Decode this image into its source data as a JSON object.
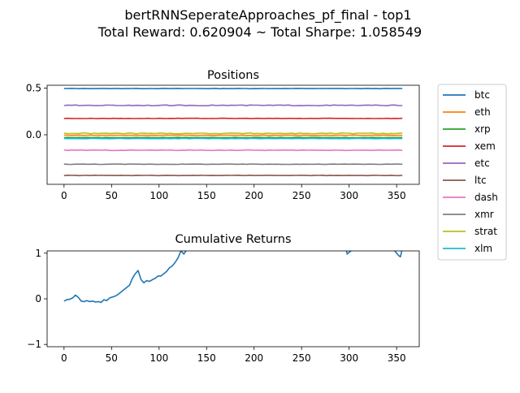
{
  "figure": {
    "title_line1": "bertRNNSeperateApproaches_pf_final - top1",
    "title_line2": "Total Reward: 0.620904 ~ Total Sharpe: 1.058549"
  },
  "chart_data": [
    {
      "type": "line",
      "title": "Positions",
      "xlim": [
        -17.8,
        373.8
      ],
      "ylim": [
        -0.53,
        0.53
      ],
      "xticks": [
        0,
        50,
        100,
        150,
        200,
        250,
        300,
        350
      ],
      "yticks": [
        0.5,
        0.0
      ],
      "ytick_labels": [
        "0.5",
        "0.0"
      ],
      "x_range": [
        0,
        356
      ],
      "series": [
        {
          "name": "btc",
          "color": "#1f77b4",
          "level": 0.495,
          "noise": 0.002
        },
        {
          "name": "eth",
          "color": "#ff7f0e",
          "level": -0.005,
          "noise": 0.002
        },
        {
          "name": "xrp",
          "color": "#2ca02c",
          "level": -0.03,
          "noise": 0.002
        },
        {
          "name": "xem",
          "color": "#d62728",
          "level": 0.175,
          "noise": 0.002
        },
        {
          "name": "etc",
          "color": "#9467bd",
          "level": 0.315,
          "noise": 0.004
        },
        {
          "name": "ltc",
          "color": "#8c564b",
          "level": -0.435,
          "noise": 0.002
        },
        {
          "name": "dash",
          "color": "#e377c2",
          "level": -0.165,
          "noise": 0.003
        },
        {
          "name": "xmr",
          "color": "#7f7f7f",
          "level": -0.315,
          "noise": 0.002
        },
        {
          "name": "strat",
          "color": "#bcbd22",
          "level": 0.015,
          "noise": 0.005
        },
        {
          "name": "xlm",
          "color": "#17becf",
          "level": -0.04,
          "noise": 0.002
        }
      ],
      "legend_placement": "outside-right",
      "grid": false
    },
    {
      "type": "line",
      "title": "Cumulative Returns",
      "xlim": [
        -17.8,
        373.8
      ],
      "ylim": [
        -1.05,
        1.05
      ],
      "xticks": [
        0,
        50,
        100,
        150,
        200,
        250,
        300,
        350
      ],
      "yticks": [
        1,
        0,
        -1
      ],
      "ytick_labels": [
        "1",
        "0",
        "−1"
      ],
      "grid": false,
      "series": [
        {
          "name": "",
          "color": "#1f77b4",
          "x": [
            0,
            3,
            6,
            9,
            12,
            15,
            18,
            21,
            24,
            27,
            30,
            33,
            36,
            39,
            42,
            45,
            48,
            51,
            54,
            57,
            60,
            63,
            66,
            69,
            72,
            75,
            78,
            81,
            84,
            87,
            90,
            93,
            96,
            99,
            102,
            105,
            108,
            111,
            114,
            117,
            120,
            123,
            126,
            129,
            132,
            135,
            138,
            296,
            298,
            300,
            302,
            304,
            306,
            308,
            310,
            346,
            348,
            350,
            352,
            354,
            356
          ],
          "y": [
            -0.05,
            -0.02,
            -0.01,
            0.02,
            0.08,
            0.03,
            -0.05,
            -0.06,
            -0.04,
            -0.06,
            -0.05,
            -0.07,
            -0.06,
            -0.08,
            -0.02,
            -0.04,
            0.02,
            0.04,
            0.06,
            0.1,
            0.15,
            0.2,
            0.25,
            0.3,
            0.45,
            0.55,
            0.62,
            0.42,
            0.35,
            0.4,
            0.38,
            0.42,
            0.45,
            0.5,
            0.5,
            0.55,
            0.6,
            0.68,
            0.72,
            0.8,
            0.9,
            1.05,
            0.98,
            1.07,
            1.08,
            1.1,
            1.12,
            1.15,
            0.98,
            1.02,
            1.05,
            1.1,
            1.12,
            1.15,
            1.2,
            1.15,
            1.05,
            1.0,
            0.95,
            0.92,
            1.1
          ]
        }
      ]
    }
  ]
}
